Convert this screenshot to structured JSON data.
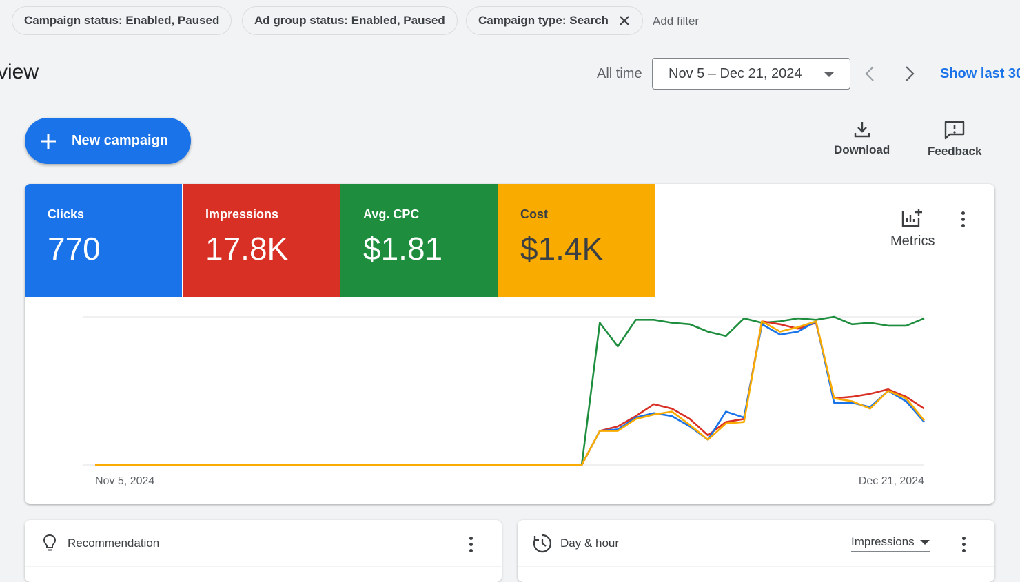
{
  "filters": {
    "chips": [
      {
        "label": "Campaign status: Enabled, Paused",
        "removable": false
      },
      {
        "label": "Ad group status: Enabled, Paused",
        "removable": false
      },
      {
        "label": "Campaign type: Search",
        "removable": true
      }
    ],
    "add_filter": "Add filter"
  },
  "header": {
    "title": "rview",
    "all_time": "All time",
    "date_range": "Nov 5 – Dec 21, 2024",
    "show_last": "Show last 30"
  },
  "actions": {
    "new_campaign": "New campaign",
    "download": "Download",
    "feedback": "Feedback"
  },
  "scorecards": [
    {
      "label": "Clicks",
      "value": "770",
      "color": "#1a73e8"
    },
    {
      "label": "Impressions",
      "value": "17.8K",
      "color": "#d93025"
    },
    {
      "label": "Avg. CPC",
      "value": "$1.81",
      "color": "#1e8e3e"
    },
    {
      "label": "Cost",
      "value": "$1.4K",
      "color": "#f9ab00"
    }
  ],
  "metrics_label": "Metrics",
  "chart_data": {
    "type": "line",
    "x_start_label": "Nov 5, 2024",
    "x_end_label": "Dec 21, 2024",
    "x": [
      "Nov 5",
      "Nov 6",
      "Nov 7",
      "Nov 8",
      "Nov 9",
      "Nov 10",
      "Nov 11",
      "Nov 12",
      "Nov 13",
      "Nov 14",
      "Nov 15",
      "Nov 16",
      "Nov 17",
      "Nov 18",
      "Nov 19",
      "Nov 20",
      "Nov 21",
      "Nov 22",
      "Nov 23",
      "Nov 24",
      "Nov 25",
      "Nov 26",
      "Nov 27",
      "Nov 28",
      "Nov 29",
      "Nov 30",
      "Dec 1",
      "Dec 2",
      "Dec 3",
      "Dec 4",
      "Dec 5",
      "Dec 6",
      "Dec 7",
      "Dec 8",
      "Dec 9",
      "Dec 10",
      "Dec 11",
      "Dec 12",
      "Dec 13",
      "Dec 14",
      "Dec 15",
      "Dec 16",
      "Dec 17",
      "Dec 18",
      "Dec 19",
      "Dec 20",
      "Dec 21"
    ],
    "gridlines": 3,
    "series": [
      {
        "color": "#1e8e3e",
        "values": [
          0,
          0,
          0,
          0,
          0,
          0,
          0,
          0,
          0,
          0,
          0,
          0,
          0,
          0,
          0,
          0,
          0,
          0,
          0,
          0,
          0,
          0,
          0,
          0,
          0,
          0,
          0,
          0,
          0.96,
          0.8,
          0.98,
          0.98,
          0.96,
          0.95,
          0.9,
          0.87,
          0.99,
          0.96,
          0.97,
          0.99,
          0.98,
          1.0,
          0.95,
          0.96,
          0.94,
          0.94,
          0.99
        ]
      },
      {
        "color": "#d93025",
        "values": [
          0,
          0,
          0,
          0,
          0,
          0,
          0,
          0,
          0,
          0,
          0,
          0,
          0,
          0,
          0,
          0,
          0,
          0,
          0,
          0,
          0,
          0,
          0,
          0,
          0,
          0,
          0,
          0,
          0.23,
          0.26,
          0.33,
          0.41,
          0.38,
          0.31,
          0.2,
          0.29,
          0.31,
          0.97,
          0.95,
          0.92,
          0.96,
          0.45,
          0.46,
          0.48,
          0.51,
          0.46,
          0.38
        ]
      },
      {
        "color": "#1a73e8",
        "values": [
          0,
          0,
          0,
          0,
          0,
          0,
          0,
          0,
          0,
          0,
          0,
          0,
          0,
          0,
          0,
          0,
          0,
          0,
          0,
          0,
          0,
          0,
          0,
          0,
          0,
          0,
          0,
          0,
          0.23,
          0.24,
          0.32,
          0.35,
          0.33,
          0.26,
          0.17,
          0.36,
          0.32,
          0.95,
          0.88,
          0.9,
          0.97,
          0.42,
          0.42,
          0.39,
          0.5,
          0.43,
          0.29
        ]
      },
      {
        "color": "#f9ab00",
        "values": [
          0,
          0,
          0,
          0,
          0,
          0,
          0,
          0,
          0,
          0,
          0,
          0,
          0,
          0,
          0,
          0,
          0,
          0,
          0,
          0,
          0,
          0,
          0,
          0,
          0,
          0,
          0,
          0,
          0.23,
          0.23,
          0.31,
          0.34,
          0.36,
          0.27,
          0.17,
          0.28,
          0.29,
          0.97,
          0.9,
          0.93,
          0.97,
          0.45,
          0.43,
          0.38,
          0.5,
          0.45,
          0.3
        ]
      }
    ]
  },
  "bottom": {
    "recommendation": "Recommendation",
    "day_hour": "Day & hour",
    "day_hour_metric": "Impressions"
  }
}
